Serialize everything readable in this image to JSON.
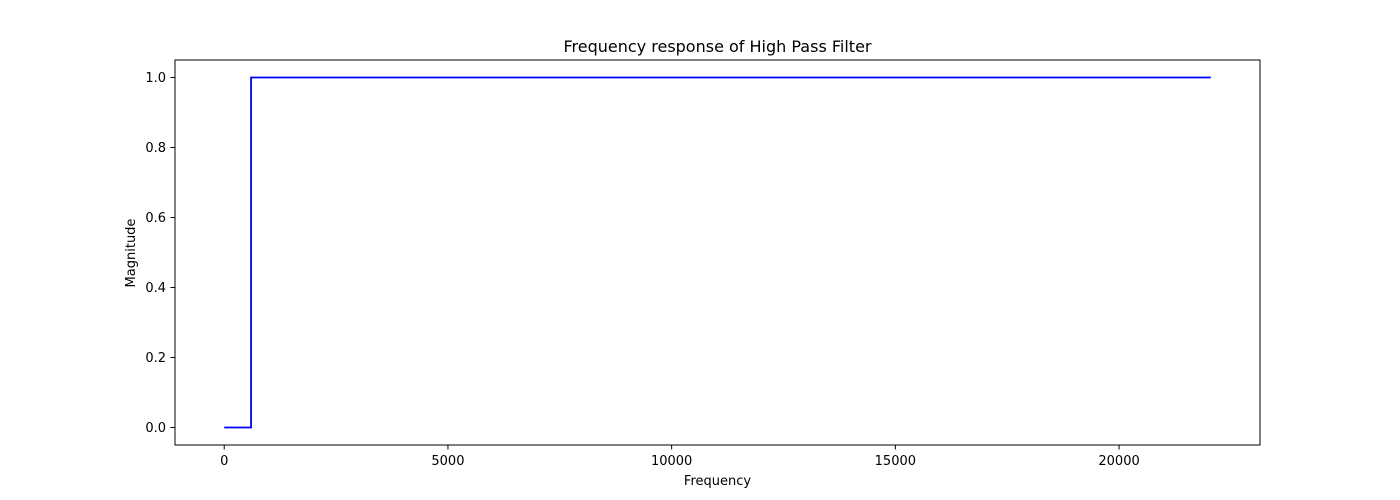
{
  "chart_data": {
    "type": "line",
    "title": "Frequency response of High Pass Filter",
    "xlabel": "Frequency",
    "ylabel": "Magnitude",
    "xlim": [
      -1100,
      23150
    ],
    "ylim": [
      -0.05,
      1.05
    ],
    "xticks": [
      0,
      5000,
      10000,
      15000,
      20000
    ],
    "xtick_labels": [
      "0",
      "5000",
      "10000",
      "15000",
      "20000"
    ],
    "yticks": [
      0.0,
      0.2,
      0.4,
      0.6,
      0.8,
      1.0
    ],
    "ytick_labels": [
      "0.0",
      "0.2",
      "0.4",
      "0.6",
      "0.8",
      "1.0"
    ],
    "grid": false,
    "series": [
      {
        "color": "#0000ff",
        "x": [
          0,
          600,
          600,
          22050
        ],
        "y": [
          0,
          0,
          1,
          1
        ]
      }
    ]
  }
}
